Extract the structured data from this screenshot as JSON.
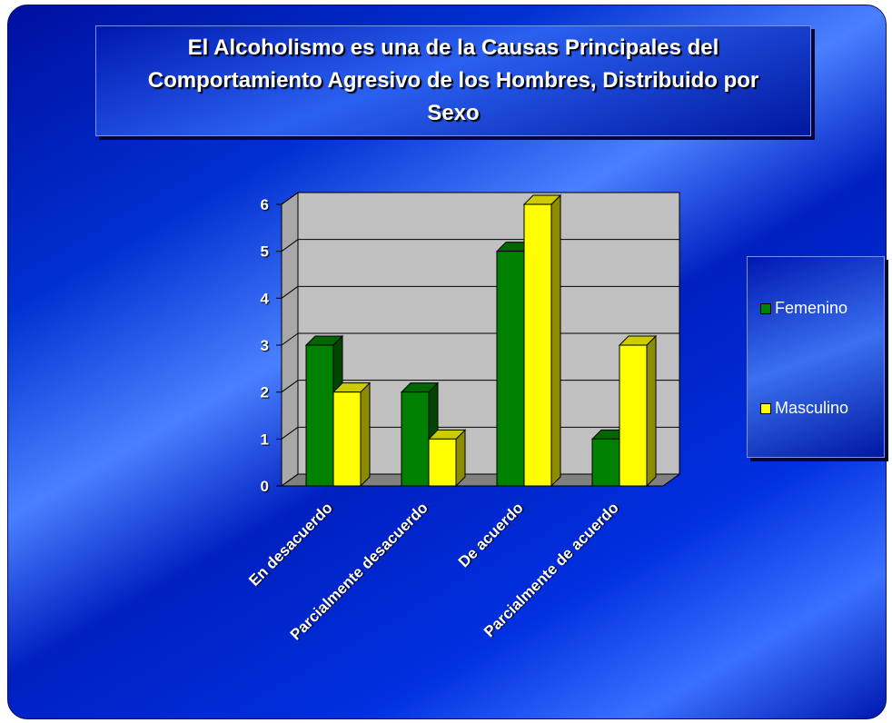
{
  "chart_data": {
    "type": "bar3d",
    "title": "El Alcoholismo es una de la Causas Principales del Comportamiento Agresivo de los Hombres,  Distribuido por Sexo",
    "categories": [
      "En desacuerdo",
      "Parcialmente desacuerdo",
      "De acuerdo",
      "Parcialmente de acuerdo"
    ],
    "series": [
      {
        "name": "Femenino",
        "color": "#008000",
        "values": [
          3,
          2,
          5,
          1
        ]
      },
      {
        "name": "Masculino",
        "color": "#ffff00",
        "values": [
          2,
          1,
          6,
          3
        ]
      }
    ],
    "ylim": [
      0,
      6
    ],
    "yticks": [
      0,
      1,
      2,
      3,
      4,
      5,
      6
    ],
    "grid": true,
    "legend": "right"
  }
}
